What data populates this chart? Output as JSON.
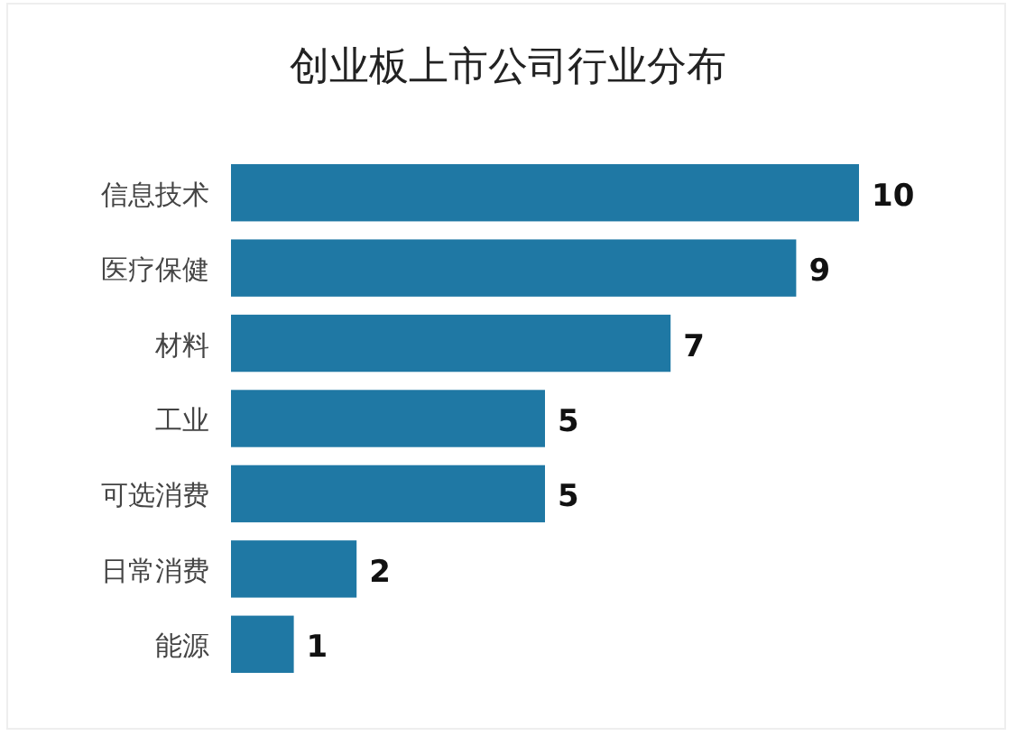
{
  "chart_data": {
    "type": "bar",
    "orientation": "horizontal",
    "title": "创业板上市公司行业分布",
    "categories": [
      "信息技术",
      "医疗保健",
      "材料",
      "工业",
      "可选消费",
      "日常消费",
      "能源"
    ],
    "values": [
      10,
      9,
      7,
      5,
      5,
      2,
      1
    ],
    "color": "#1f78a4",
    "data_labels": true
  }
}
